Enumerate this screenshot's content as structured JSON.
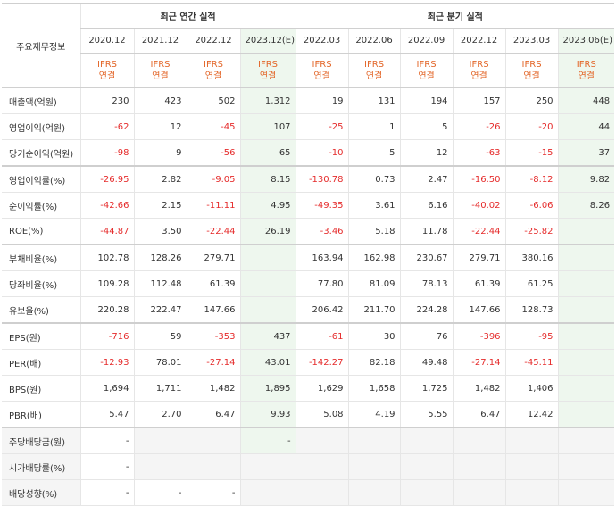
{
  "header": {
    "corner_label": "주요재무정보",
    "annual_group": "최근 연간 실적",
    "quarter_group": "최근 분기 실적",
    "annual_periods": [
      "2020.12",
      "2021.12",
      "2022.12",
      "2023.12(E)"
    ],
    "quarter_periods": [
      "2022.03",
      "2022.06",
      "2022.09",
      "2022.12",
      "2023.03",
      "2023.06(E)"
    ],
    "ifrs_top": "IFRS",
    "ifrs_bottom": "연결"
  },
  "rows": [
    {
      "label": "매출액(억원)",
      "values": [
        "230",
        "423",
        "502",
        "1,312",
        "19",
        "131",
        "194",
        "157",
        "250",
        "448"
      ]
    },
    {
      "label": "영업이익(억원)",
      "values": [
        "-62",
        "12",
        "-45",
        "107",
        "-25",
        "1",
        "5",
        "-26",
        "-20",
        "44"
      ]
    },
    {
      "label": "당기순이익(억원)",
      "values": [
        "-98",
        "9",
        "-56",
        "65",
        "-10",
        "5",
        "12",
        "-63",
        "-15",
        "37"
      ]
    },
    {
      "label": "영업이익률(%)",
      "values": [
        "-26.95",
        "2.82",
        "-9.05",
        "8.15",
        "-130.78",
        "0.73",
        "2.47",
        "-16.50",
        "-8.12",
        "9.82"
      ]
    },
    {
      "label": "순이익률(%)",
      "values": [
        "-42.66",
        "2.15",
        "-11.11",
        "4.95",
        "-49.35",
        "3.61",
        "6.16",
        "-40.02",
        "-6.06",
        "8.26"
      ]
    },
    {
      "label": "ROE(%)",
      "values": [
        "-44.87",
        "3.50",
        "-22.44",
        "26.19",
        "-3.46",
        "5.18",
        "11.78",
        "-22.44",
        "-25.82",
        ""
      ]
    },
    {
      "label": "부채비율(%)",
      "values": [
        "102.78",
        "128.26",
        "279.71",
        "",
        "163.94",
        "162.98",
        "230.67",
        "279.71",
        "380.16",
        ""
      ]
    },
    {
      "label": "당좌비율(%)",
      "values": [
        "109.28",
        "112.48",
        "61.39",
        "",
        "77.80",
        "81.09",
        "78.13",
        "61.39",
        "61.25",
        ""
      ]
    },
    {
      "label": "유보율(%)",
      "values": [
        "220.28",
        "222.47",
        "147.66",
        "",
        "206.42",
        "211.70",
        "224.28",
        "147.66",
        "128.73",
        ""
      ]
    },
    {
      "label": "EPS(원)",
      "values": [
        "-716",
        "59",
        "-353",
        "437",
        "-61",
        "30",
        "76",
        "-396",
        "-95",
        ""
      ]
    },
    {
      "label": "PER(배)",
      "values": [
        "-12.93",
        "78.01",
        "-27.14",
        "43.01",
        "-142.27",
        "82.18",
        "49.48",
        "-27.14",
        "-45.11",
        ""
      ]
    },
    {
      "label": "BPS(원)",
      "values": [
        "1,694",
        "1,711",
        "1,482",
        "1,895",
        "1,629",
        "1,658",
        "1,725",
        "1,482",
        "1,406",
        ""
      ]
    },
    {
      "label": "PBR(배)",
      "values": [
        "5.47",
        "2.70",
        "6.47",
        "9.93",
        "5.08",
        "4.19",
        "5.55",
        "6.47",
        "12.42",
        ""
      ]
    },
    {
      "label": "주당배당금(원)",
      "values": [
        "-",
        "",
        "",
        "-",
        "",
        "",
        "",
        "",
        "",
        ""
      ]
    },
    {
      "label": "시가배당률(%)",
      "values": [
        "-",
        "",
        "",
        "",
        "",
        "",
        "",
        "",
        "",
        ""
      ]
    },
    {
      "label": "배당성향(%)",
      "values": [
        "-",
        "-",
        "-",
        "",
        "",
        "",
        "",
        "",
        "",
        ""
      ]
    }
  ]
}
